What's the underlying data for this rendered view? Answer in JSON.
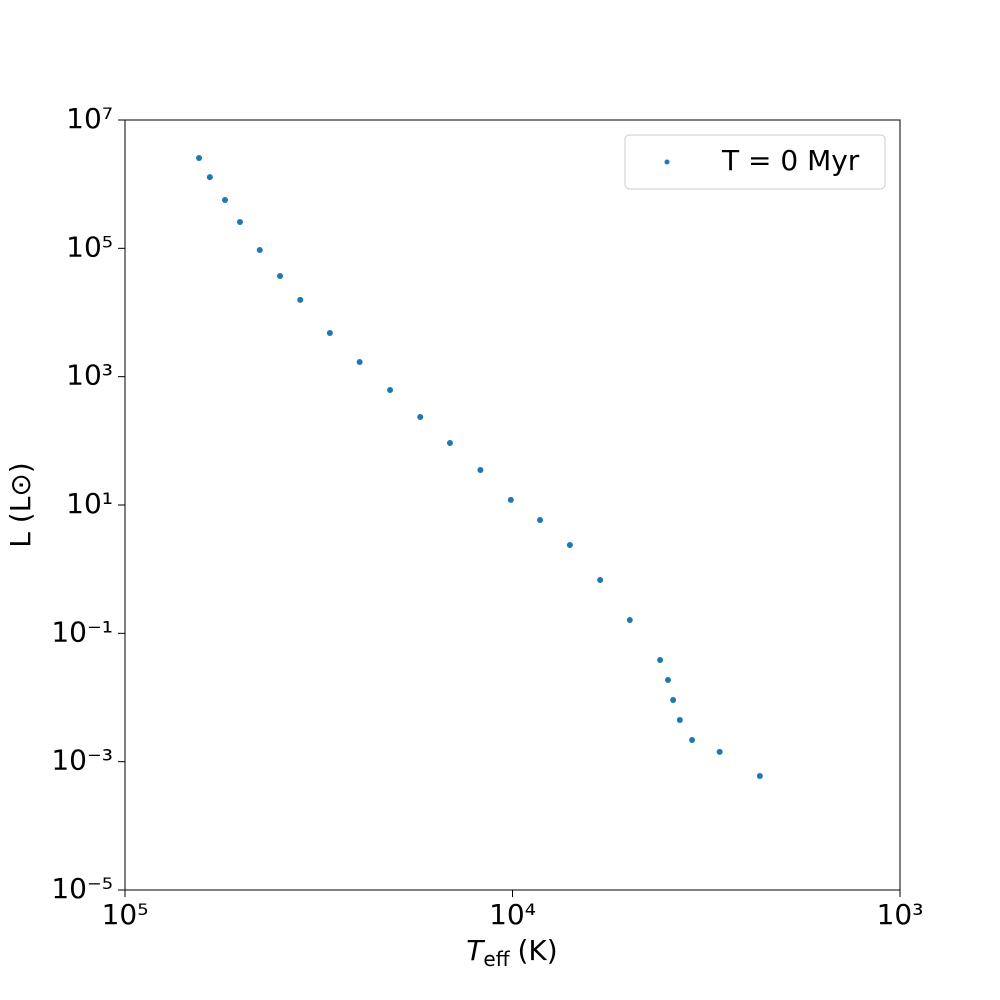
{
  "chart_data": {
    "type": "scatter",
    "xlabel": {
      "symbol": "T",
      "subscript": "eff",
      "unit": "(K)"
    },
    "ylabel": "L (L⊙)",
    "x": [
      64400,
      60400,
      55200,
      50500,
      44900,
      39800,
      35300,
      29600,
      24800,
      20700,
      17300,
      14500,
      12100,
      10100,
      8490,
      7110,
      5940,
      4980,
      4160,
      3970,
      3850,
      3700,
      3440,
      2920,
      2300
    ],
    "series": [
      {
        "name": "T = 0 Myr",
        "color": "#1f77b4",
        "values": [
          2560000,
          1290000,
          566000,
          257000,
          94200,
          37100,
          15700,
          4790,
          1690,
          619,
          235,
          92.5,
          35.1,
          12.0,
          5.83,
          2.38,
          0.678,
          0.161,
          0.0384,
          0.0187,
          0.00914,
          0.00446,
          0.00218,
          0.00142,
          0.000598
        ]
      }
    ],
    "xscale": "log",
    "yscale": "log",
    "xinverted": true,
    "xlim": [
      100000,
      1000
    ],
    "ylim": [
      1e-05,
      10000000
    ],
    "xticks": [
      {
        "value": 100000,
        "label": "10⁵"
      },
      {
        "value": 10000,
        "label": "10⁴"
      },
      {
        "value": 1000,
        "label": "10³"
      }
    ],
    "yticks": [
      {
        "value": 1e-05,
        "label": "10⁻⁵"
      },
      {
        "value": 0.001,
        "label": "10⁻³"
      },
      {
        "value": 0.1,
        "label": "10⁻¹"
      },
      {
        "value": 10,
        "label": "10¹"
      },
      {
        "value": 1000,
        "label": "10³"
      },
      {
        "value": 100000,
        "label": "10⁵"
      },
      {
        "value": 10000000,
        "label": "10⁷"
      }
    ],
    "grid": false,
    "legend": "upper right"
  }
}
